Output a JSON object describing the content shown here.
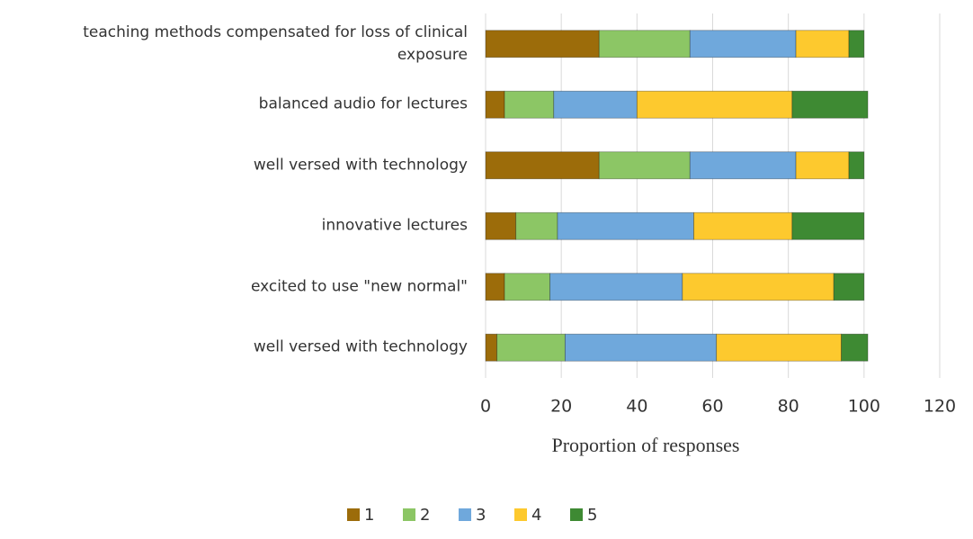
{
  "chart_data": {
    "type": "stacked-bar-horizontal",
    "categories": [
      "teaching methods compensated for loss of clinical exposure",
      "balanced audio for lectures",
      "well versed with technology",
      "innovative lectures",
      "excited to use \"new normal\"",
      "well versed with technology"
    ],
    "series": [
      {
        "name": "1",
        "color": "#9c6c0a",
        "values": [
          30,
          5,
          30,
          8,
          5,
          3
        ]
      },
      {
        "name": "2",
        "color": "#8cc665",
        "values": [
          24,
          13,
          24,
          11,
          12,
          18
        ]
      },
      {
        "name": "3",
        "color": "#6fa8dc",
        "values": [
          28,
          22,
          28,
          36,
          35,
          40
        ]
      },
      {
        "name": "4",
        "color": "#fdc92e",
        "values": [
          14,
          41,
          14,
          26,
          40,
          33
        ]
      },
      {
        "name": "5",
        "color": "#3e8a33",
        "values": [
          4,
          20,
          4,
          19,
          8,
          7
        ]
      }
    ],
    "xlabel": "Proportion of responses",
    "xlim": [
      0,
      120
    ],
    "xticks": [
      0,
      20,
      40,
      60,
      80,
      100,
      120
    ],
    "grid": true,
    "legend": "bottom"
  }
}
